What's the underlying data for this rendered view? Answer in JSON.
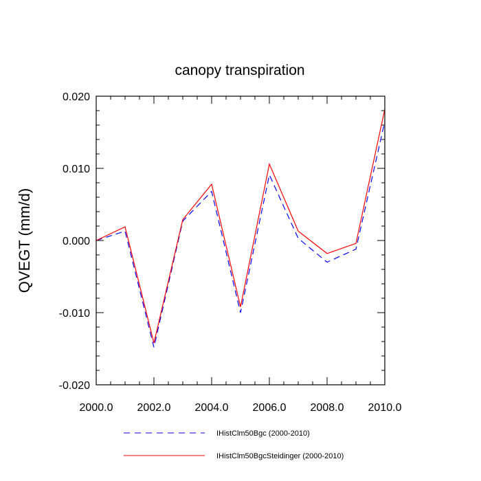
{
  "chart_data": {
    "type": "line",
    "title": "canopy transpiration",
    "xlabel": "",
    "ylabel": "QVEGT  (mm/d)",
    "xlim": [
      2000,
      2010
    ],
    "ylim": [
      -0.02,
      0.02
    ],
    "x_ticks": [
      "2000.0",
      "2002.0",
      "2004.0",
      "2006.0",
      "2008.0",
      "2010.0"
    ],
    "y_ticks": [
      "0.020",
      "0.010",
      "0.000",
      "-0.010",
      "-0.020"
    ],
    "x": [
      2000,
      2001,
      2002,
      2003,
      2004,
      2005,
      2006,
      2007,
      2008,
      2009,
      2010
    ],
    "grid": false,
    "legend_position": "bottom",
    "series": [
      {
        "name": "IHistClm50Bgc (2000-2010)",
        "color": "#0000ff",
        "line_style": "dashed",
        "values": [
          0.0,
          0.0013,
          -0.0148,
          0.0027,
          0.0068,
          -0.01,
          0.0091,
          0.0003,
          -0.003,
          -0.0012,
          0.0165
        ]
      },
      {
        "name": "IHistClm50BgcSteidinger (2000-2010)",
        "color": "#ff0000",
        "line_style": "solid",
        "values": [
          0.0,
          0.0019,
          -0.0142,
          0.0029,
          0.0078,
          -0.0092,
          0.0106,
          0.0013,
          -0.0018,
          -0.0004,
          0.0182
        ]
      }
    ]
  }
}
